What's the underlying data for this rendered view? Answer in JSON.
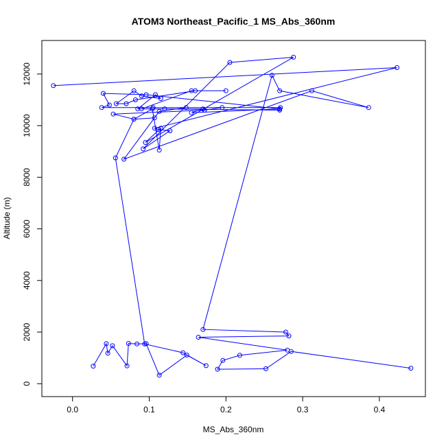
{
  "chart_data": {
    "type": "line",
    "title": "ATOM3 Northeast_Pacific_1 MS_Abs_360nm",
    "xlabel": "MS_Abs_360nm",
    "ylabel": "Altitude (m)",
    "xlim": [
      -0.04,
      0.46
    ],
    "ylim": [
      -500,
      13300
    ],
    "x_ticks": [
      0.0,
      0.1,
      0.2,
      0.3,
      0.4
    ],
    "x_tick_labels": [
      "0.0",
      "0.1",
      "0.2",
      "0.3",
      "0.4"
    ],
    "y_ticks": [
      0,
      2000,
      4000,
      6000,
      8000,
      10000,
      12000
    ],
    "y_tick_labels": [
      "0",
      "2000",
      "4000",
      "6000",
      "8000",
      "10000",
      "12000"
    ],
    "grid": false,
    "legend": "none",
    "color": "#0000ff",
    "markers": "open-circle",
    "series": [
      {
        "x": [
          -0.025,
          0.423,
          0.107,
          0.112,
          0.127,
          0.092,
          0.205,
          0.288,
          0.095,
          0.115,
          0.113,
          0.104,
          0.08,
          0.053,
          0.172,
          0.195,
          0.105,
          0.271,
          0.27,
          0.12,
          0.085,
          0.108,
          0.115,
          0.09,
          0.08,
          0.057,
          0.07,
          0.082,
          0.16,
          0.2,
          0.155,
          0.09,
          0.17,
          0.155,
          0.27,
          0.096,
          0.04,
          0.048,
          0.038,
          0.148,
          0.113,
          0.067,
          0.312,
          0.386,
          0.27,
          0.26,
          0.17,
          0.278,
          0.282,
          0.164,
          0.28,
          0.218,
          0.196,
          0.189,
          0.252,
          0.285,
          0.441
        ],
        "y": [
          11550,
          12250,
          9900,
          9850,
          9800,
          9100,
          12450,
          12650,
          9350,
          9900,
          9050,
          10650,
          10250,
          10450,
          10600,
          10700,
          10700,
          10700,
          10600,
          10650,
          10650,
          11200,
          11050,
          11150,
          11350,
          10850,
          10850,
          11000,
          11350,
          11350,
          11350,
          10650,
          10650,
          10500,
          10650,
          11200,
          11250,
          10800,
          10700,
          10700,
          10550,
          8700,
          11350,
          10700,
          11350,
          11950,
          2100,
          2000,
          1850,
          1800,
          1300,
          1100,
          900,
          560,
          580,
          1250,
          600
        ]
      },
      {
        "x": [
          0.027,
          0.044,
          0.046,
          0.052,
          0.071,
          0.073,
          0.084,
          0.096,
          0.113,
          0.149,
          0.174,
          0.144,
          0.094,
          0.056,
          0.08,
          0.107
        ],
        "y": [
          680,
          1550,
          1180,
          1470,
          690,
          1560,
          1540,
          1550,
          330,
          1110,
          700,
          1200,
          1540,
          8750,
          10250,
          10300
        ]
      }
    ]
  }
}
